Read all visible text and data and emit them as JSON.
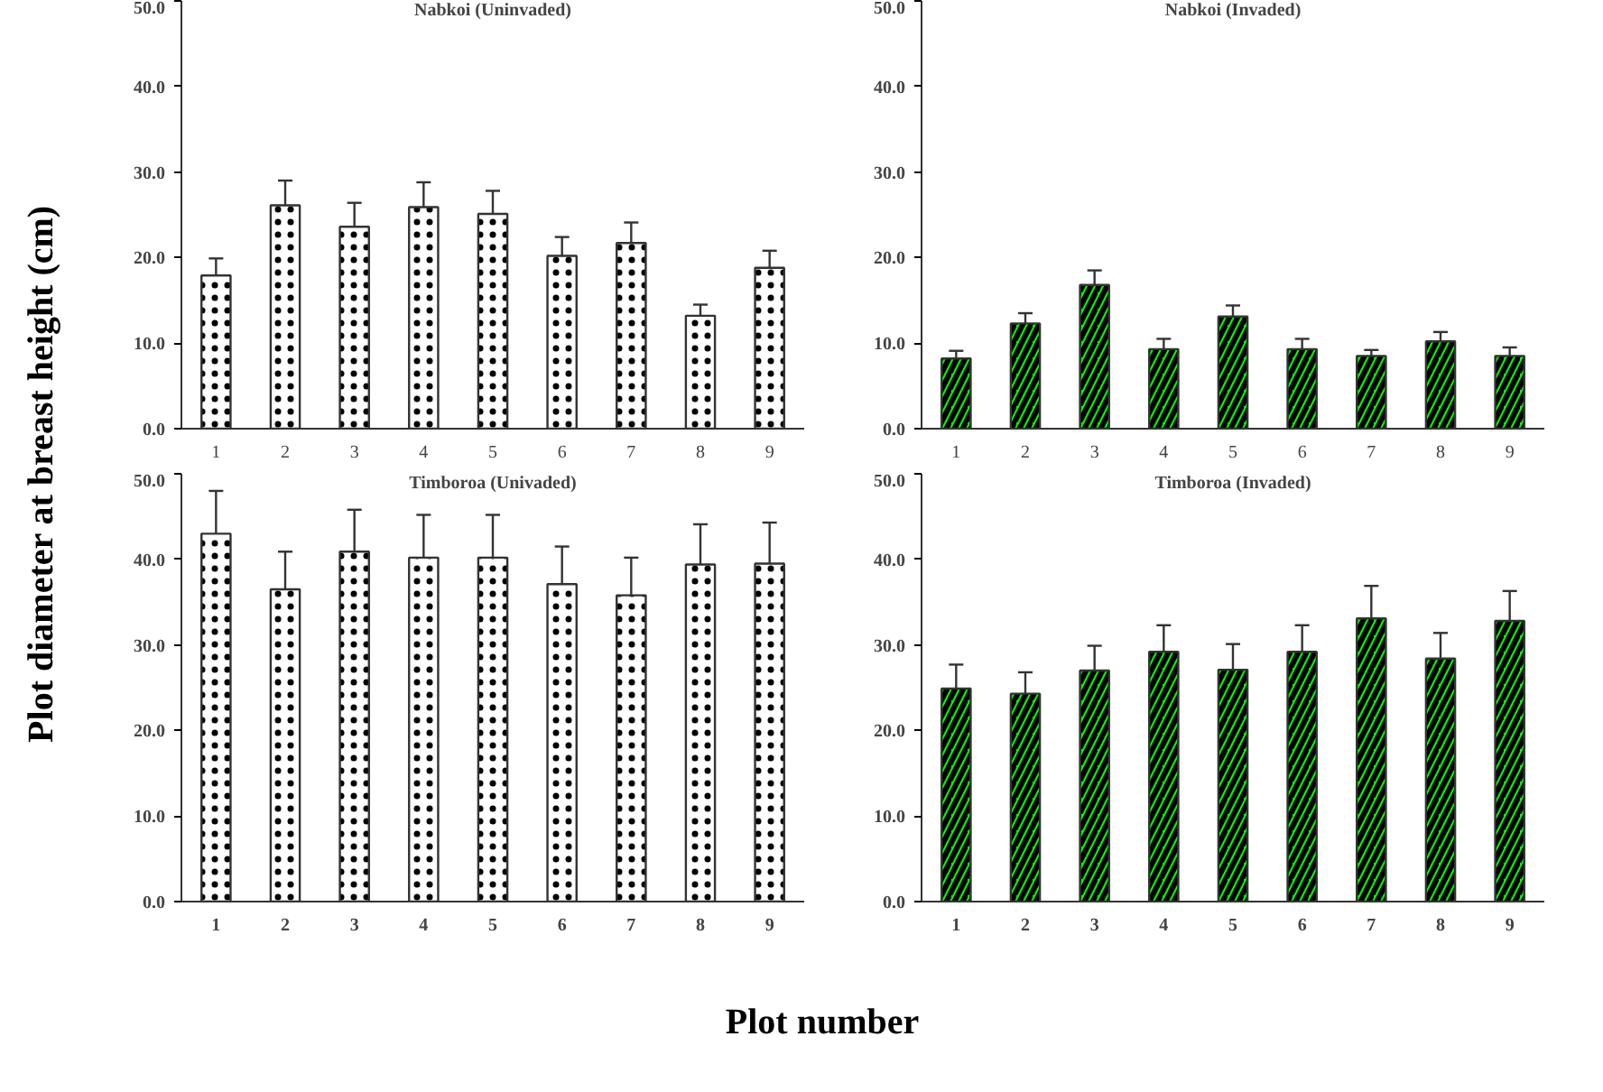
{
  "chart_data": [
    {
      "type": "bar",
      "title": "Nabkoi (Uninvaded)",
      "ylabel": "Plot diameter at breast height (cm)",
      "categories": [
        "1",
        "2",
        "3",
        "4",
        "5",
        "6",
        "7",
        "8",
        "9"
      ],
      "values": [
        17.9,
        26.1,
        23.6,
        25.9,
        25.1,
        20.2,
        21.7,
        13.2,
        18.8
      ],
      "errors": [
        [
          17.9,
          19.9
        ],
        [
          26.1,
          29.0
        ],
        [
          23.6,
          26.4
        ],
        [
          25.9,
          28.8
        ],
        [
          25.1,
          27.8
        ],
        [
          20.2,
          22.4
        ],
        [
          21.7,
          24.1
        ],
        [
          13.2,
          14.5
        ],
        [
          18.8,
          20.8
        ]
      ],
      "color": "#ffffff",
      "ylim": [
        0,
        50
      ],
      "yticks": [
        {
          "value": 0,
          "label": "0.0"
        },
        {
          "value": 10,
          "label": "10.0"
        },
        {
          "value": 20,
          "label": "20.0"
        },
        {
          "value": 30,
          "label": "30.0"
        },
        {
          "value": 40,
          "label": "40.0"
        },
        {
          "value": 50,
          "label": "50.0"
        }
      ],
      "grid": false
    },
    {
      "type": "bar",
      "title": "Nabkoi (Invaded)",
      "categories": [
        "1",
        "2",
        "3",
        "4",
        "5",
        "6",
        "7",
        "8",
        "9"
      ],
      "values": [
        8.2,
        12.3,
        16.8,
        9.3,
        13.1,
        9.3,
        8.5,
        10.2,
        8.5
      ],
      "errors": [
        [
          8.2,
          9.1
        ],
        [
          12.3,
          13.5
        ],
        [
          16.8,
          18.5
        ],
        [
          9.3,
          10.5
        ],
        [
          13.1,
          14.4
        ],
        [
          9.3,
          10.5
        ],
        [
          8.5,
          9.2
        ],
        [
          10.2,
          11.3
        ],
        [
          8.5,
          9.5
        ]
      ],
      "color": "#00ff00",
      "ylim": [
        0,
        50
      ],
      "yticks": [
        {
          "value": 0,
          "label": "0.0"
        },
        {
          "value": 10,
          "label": "10.0"
        },
        {
          "value": 20,
          "label": "20.0"
        },
        {
          "value": 30,
          "label": "30.0"
        },
        {
          "value": 40,
          "label": "40.0"
        },
        {
          "value": 50,
          "label": "50.0"
        }
      ],
      "grid": false
    },
    {
      "type": "bar",
      "title": "Timboroa (Univaded)",
      "xlabel": "Plot number",
      "categories": [
        "1",
        "2",
        "3",
        "4",
        "5",
        "6",
        "7",
        "8",
        "9"
      ],
      "values": [
        43.0,
        36.5,
        40.9,
        40.2,
        40.2,
        37.1,
        35.8,
        39.4,
        39.5
      ],
      "errors": [
        [
          43.0,
          48.0
        ],
        [
          36.5,
          40.9
        ],
        [
          40.9,
          45.8
        ],
        [
          40.2,
          45.2
        ],
        [
          40.2,
          45.2
        ],
        [
          37.1,
          41.5
        ],
        [
          35.8,
          40.2
        ],
        [
          39.4,
          44.1
        ],
        [
          39.5,
          44.3
        ]
      ],
      "color": "#ffffff",
      "ylim": [
        0,
        50
      ],
      "yticks": [
        {
          "value": 0,
          "label": "0.0"
        },
        {
          "value": 10,
          "label": "10.0"
        },
        {
          "value": 20,
          "label": "20.0"
        },
        {
          "value": 30,
          "label": "30.0"
        },
        {
          "value": 40,
          "label": "40.0"
        },
        {
          "value": 50,
          "label": "50.0"
        }
      ],
      "grid": false
    },
    {
      "type": "bar",
      "title": "Timboroa (Invaded)",
      "categories": [
        "1",
        "2",
        "3",
        "4",
        "5",
        "6",
        "7",
        "8",
        "9"
      ],
      "values": [
        24.9,
        24.3,
        27.0,
        29.2,
        27.1,
        29.2,
        33.1,
        28.4,
        32.8
      ],
      "errors": [
        [
          24.9,
          27.7
        ],
        [
          24.3,
          26.8
        ],
        [
          27.0,
          29.9
        ],
        [
          29.2,
          32.3
        ],
        [
          27.1,
          30.1
        ],
        [
          29.2,
          32.3
        ],
        [
          33.1,
          36.9
        ],
        [
          28.4,
          31.4
        ],
        [
          32.8,
          36.3
        ]
      ],
      "color": "#00ff00",
      "ylim": [
        0,
        50
      ],
      "yticks": [
        {
          "value": 0,
          "label": "0.0"
        },
        {
          "value": 10,
          "label": "10.0"
        },
        {
          "value": 20,
          "label": "20.0"
        },
        {
          "value": 30,
          "label": "30.0"
        },
        {
          "value": 40,
          "label": "40.0"
        },
        {
          "value": 50,
          "label": "50.0"
        }
      ],
      "grid": false
    }
  ]
}
